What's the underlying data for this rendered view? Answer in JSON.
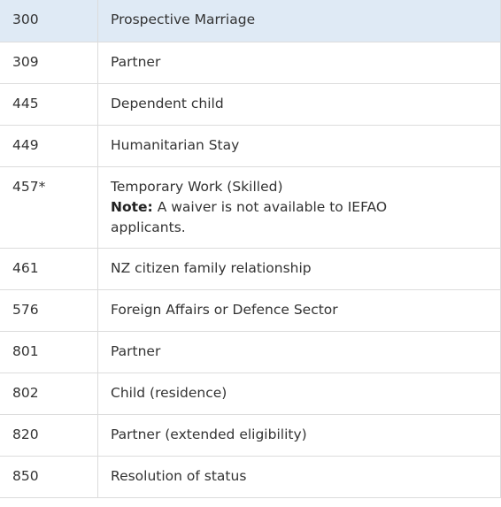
{
  "table": {
    "rows": [
      {
        "code": "300",
        "description": "Prospective Marriage"
      },
      {
        "code": "309",
        "description": "Partner"
      },
      {
        "code": "445",
        "description": "Dependent child"
      },
      {
        "code": "449",
        "description": "Humanitarian Stay"
      },
      {
        "code": "457*",
        "description": "Temporary Work (Skilled)",
        "note_label": "Note:",
        "note": "A waiver is not available to IEFAO applicants."
      },
      {
        "code": "461",
        "description": "NZ citizen family relationship"
      },
      {
        "code": "576",
        "description": "Foreign Affairs or Defence Sector"
      },
      {
        "code": "801",
        "description": "Partner"
      },
      {
        "code": "802",
        "description": "Child (residence)"
      },
      {
        "code": "820",
        "description": "Partner (extended eligibility)"
      },
      {
        "code": "850",
        "description": "Resolution of status"
      }
    ]
  }
}
